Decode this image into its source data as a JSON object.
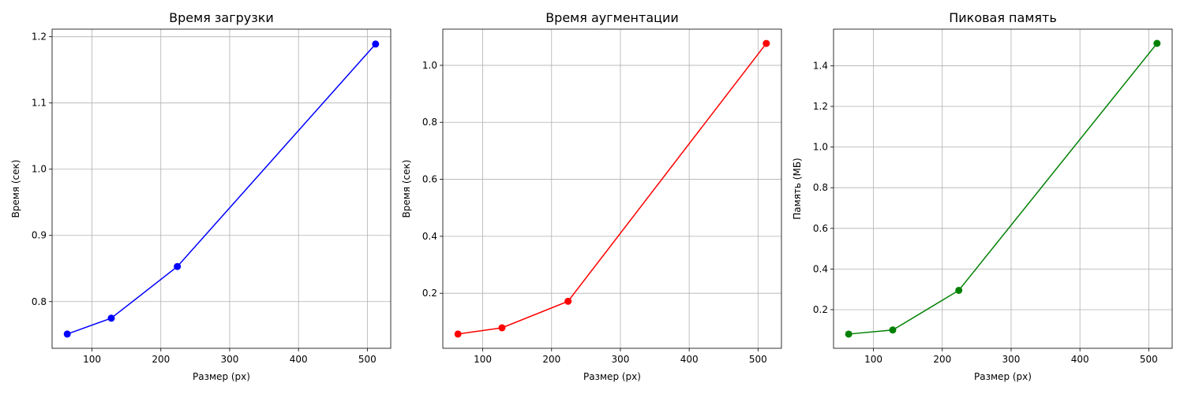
{
  "chart_data": [
    {
      "type": "line",
      "title": "Время загрузки",
      "xlabel": "Размер (px)",
      "ylabel": "Время (сек)",
      "color": "#0000ff",
      "marker": "circle",
      "grid": true,
      "xlim": [
        42,
        534
      ],
      "ylim": [
        0.7295,
        1.2115
      ],
      "xticks": [
        100,
        200,
        300,
        400,
        500
      ],
      "yticks": [
        0.8,
        0.9,
        1.0,
        1.1,
        1.2
      ],
      "x": [
        64,
        128,
        224,
        512
      ],
      "y": [
        0.751,
        0.775,
        0.853,
        1.189
      ]
    },
    {
      "type": "line",
      "title": "Время аугментации",
      "xlabel": "Размер (px)",
      "ylabel": "Время (сек)",
      "color": "#ff0000",
      "marker": "circle",
      "grid": true,
      "xlim": [
        42,
        534
      ],
      "ylim": [
        0.007,
        1.127
      ],
      "xticks": [
        100,
        200,
        300,
        400,
        500
      ],
      "yticks": [
        0.2,
        0.4,
        0.6,
        0.8,
        1.0
      ],
      "x": [
        64,
        128,
        224,
        512
      ],
      "y": [
        0.057,
        0.079,
        0.172,
        1.077
      ]
    },
    {
      "type": "line",
      "title": "Пиковая память",
      "xlabel": "Размер (px)",
      "ylabel": "Память (МБ)",
      "color": "#008000",
      "marker": "circle",
      "grid": true,
      "xlim": [
        42,
        534
      ],
      "ylim": [
        0.01,
        1.58
      ],
      "xticks": [
        100,
        200,
        300,
        400,
        500
      ],
      "yticks": [
        0.2,
        0.4,
        0.6,
        0.8,
        1.0,
        1.2,
        1.4
      ],
      "x": [
        64,
        128,
        224,
        512
      ],
      "y": [
        0.08,
        0.1,
        0.295,
        1.51
      ]
    }
  ]
}
